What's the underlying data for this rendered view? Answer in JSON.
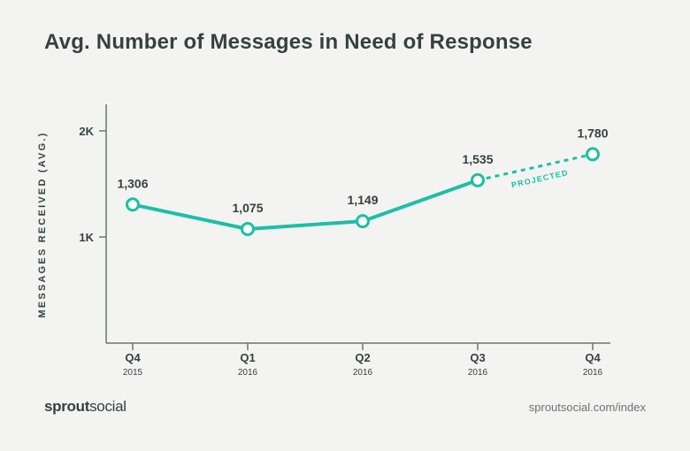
{
  "header": {
    "title": "Avg. Number of Messages in Need of Response"
  },
  "chart_data": {
    "type": "line",
    "title": "Avg. Number of Messages in Need of Response",
    "ylabel": "MESSAGES RECEIVED (AVG.)",
    "xlabel": "",
    "ylim": [
      0,
      2250
    ],
    "yticks": [
      {
        "value": 1000,
        "label": "1K"
      },
      {
        "value": 2000,
        "label": "2K"
      }
    ],
    "categories": [
      {
        "quarter": "Q4",
        "year": "2015"
      },
      {
        "quarter": "Q1",
        "year": "2016"
      },
      {
        "quarter": "Q2",
        "year": "2016"
      },
      {
        "quarter": "Q3",
        "year": "2016"
      },
      {
        "quarter": "Q4",
        "year": "2016"
      }
    ],
    "series": [
      {
        "name": "Messages in need of response",
        "values": [
          1306,
          1075,
          1149,
          1535,
          1780
        ],
        "labels": [
          "1,306",
          "1,075",
          "1,149",
          "1,535",
          "1,780"
        ],
        "projected_from_index": 3
      }
    ],
    "annotations": [
      {
        "text": "PROJECTED",
        "between": [
          3,
          4
        ]
      }
    ],
    "grid": false,
    "color": "#1dbfa6"
  },
  "footer": {
    "brand_bold": "sprout",
    "brand_light": "social",
    "source": "sproutsocial.com/index"
  }
}
